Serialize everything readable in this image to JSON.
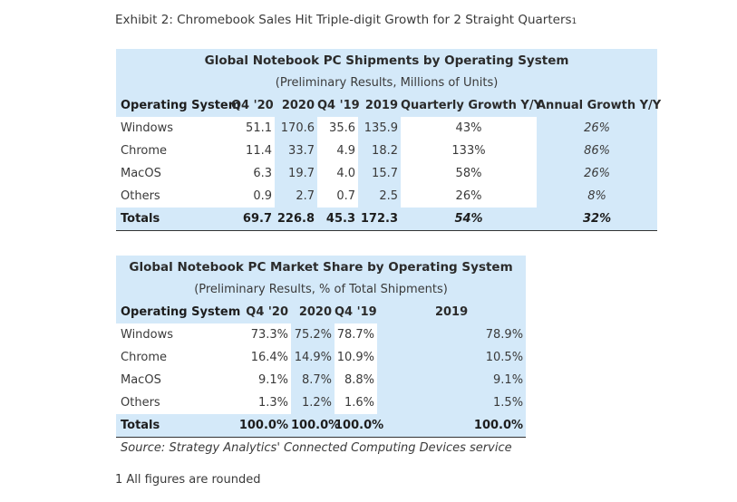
{
  "exhibit_title": "Exhibit 2: Chromebook Sales Hit Triple-digit Growth for 2 Straight Quarters",
  "exhibit_footnote_mark": "1",
  "table1": {
    "title": "Global Notebook PC Shipments by Operating System",
    "subtitle": "(Preliminary Results, Millions of Units)",
    "headers": [
      "Operating System",
      "Q4 '20",
      "2020",
      "Q4 '19",
      "2019",
      "Quarterly Growth Y/Y",
      "Annual Growth Y/Y"
    ],
    "rows": [
      [
        "Windows",
        "51.1",
        "170.6",
        "35.6",
        "135.9",
        "43%",
        "26%"
      ],
      [
        "Chrome",
        "11.4",
        "33.7",
        "4.9",
        "18.2",
        "133%",
        "86%"
      ],
      [
        "MacOS",
        "6.3",
        "19.7",
        "4.0",
        "15.7",
        "58%",
        "26%"
      ],
      [
        "Others",
        "0.9",
        "2.7",
        "0.7",
        "2.5",
        "26%",
        "8%"
      ]
    ],
    "total": [
      "Totals",
      "69.7",
      "226.8",
      "45.3",
      "172.3",
      "54%",
      "32%"
    ]
  },
  "table2": {
    "title": "Global Notebook PC Market Share by Operating System",
    "subtitle": "(Preliminary Results, % of Total Shipments)",
    "headers": [
      "Operating System",
      "Q4 '20",
      "2020",
      "Q4 '19",
      "2019"
    ],
    "rows": [
      [
        "Windows",
        "73.3%",
        "75.2%",
        "78.7%",
        "78.9%"
      ],
      [
        "Chrome",
        "16.4%",
        "14.9%",
        "10.9%",
        "10.5%"
      ],
      [
        "MacOS",
        "9.1%",
        "8.7%",
        "8.8%",
        "9.1%"
      ],
      [
        "Others",
        "1.3%",
        "1.2%",
        "1.6%",
        "1.5%"
      ]
    ],
    "total": [
      "Totals",
      "100.0%",
      "100.0%",
      "100.0%",
      "100.0%"
    ]
  },
  "source": "Source: Strategy Analytics' Connected Computing Devices service",
  "footnote": "1 All figures are rounded"
}
